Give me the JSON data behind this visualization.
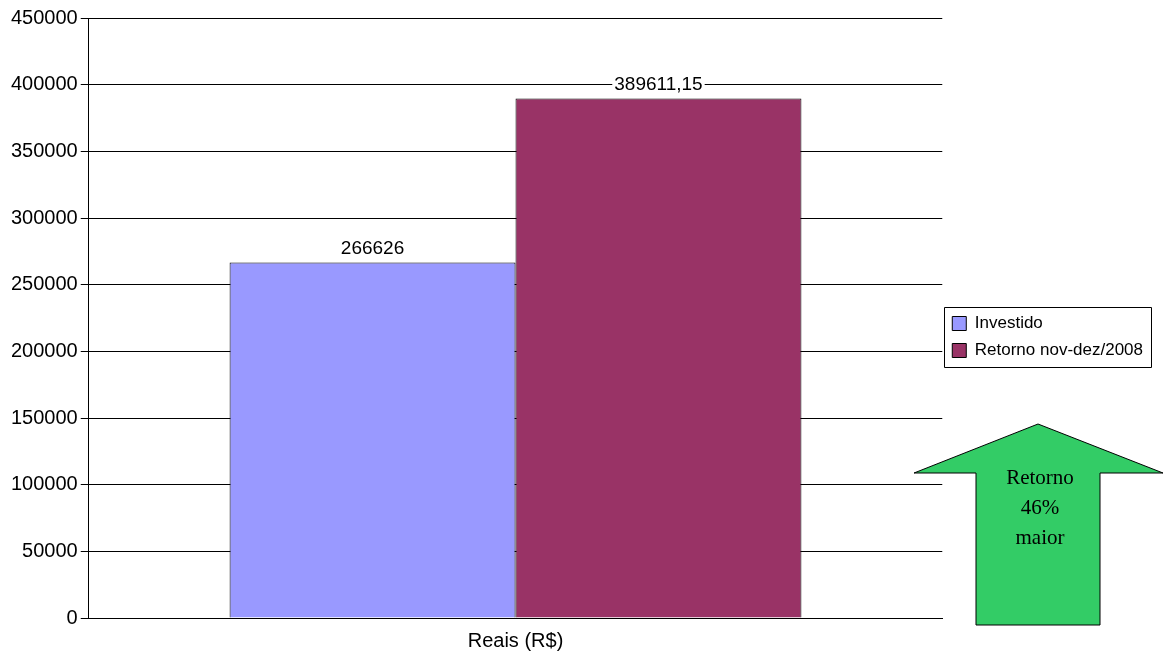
{
  "chart_data": {
    "type": "bar",
    "categories": [
      "Reais (R$)"
    ],
    "series": [
      {
        "name": "Investido",
        "color": "#9999ff",
        "values": [
          266626
        ],
        "value_labels": [
          "266626"
        ]
      },
      {
        "name": "Retorno nov-dez/2008",
        "color": "#993366",
        "values": [
          389611.15
        ],
        "value_labels": [
          "389611,15"
        ]
      }
    ],
    "ylim": [
      0,
      450000
    ],
    "yticks": [
      0,
      50000,
      100000,
      150000,
      200000,
      250000,
      300000,
      350000,
      400000,
      450000
    ],
    "grid": "y",
    "legend": "right",
    "annotations": [
      "Retorno 46% maior"
    ]
  }
}
